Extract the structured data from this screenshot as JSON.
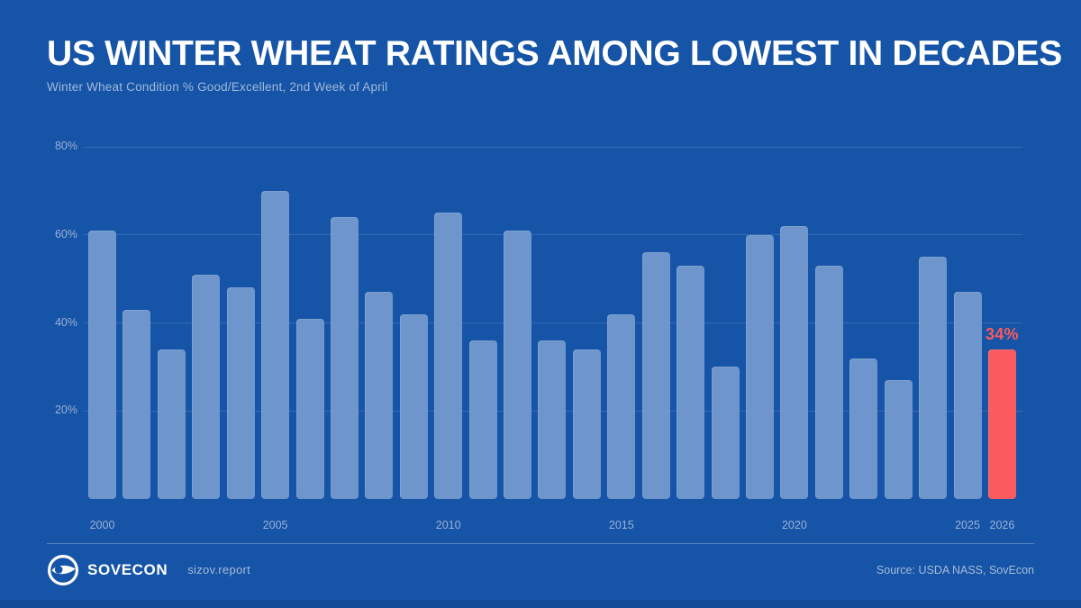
{
  "chart_data": {
    "type": "bar",
    "title": "US WINTER WHEAT RATINGS AMONG LOWEST IN DECADES",
    "subtitle": "Winter Wheat Condition % Good/Excellent, 2nd Week of April",
    "categories": [
      "2000",
      "2001",
      "2002",
      "2003",
      "2004",
      "2005",
      "2006",
      "2007",
      "2008",
      "2009",
      "2010",
      "2011",
      "2012",
      "2013",
      "2014",
      "2015",
      "2016",
      "2017",
      "2018",
      "2019",
      "2020",
      "2021",
      "2022",
      "2023",
      "2024",
      "2025",
      "2026"
    ],
    "values": [
      61,
      43,
      34,
      51,
      48,
      70,
      41,
      64,
      47,
      42,
      65,
      36,
      61,
      36,
      34,
      42,
      56,
      53,
      30,
      60,
      62,
      53,
      32,
      27,
      55,
      47,
      34
    ],
    "unit": "%",
    "ylim": [
      0,
      80
    ],
    "y_ticks": [
      20,
      40,
      60,
      80
    ],
    "y_tick_labels": [
      "20%",
      "40%",
      "60%",
      "80%"
    ],
    "x_tick_labels": [
      "2000",
      "2005",
      "2010",
      "2015",
      "2020",
      "2025",
      "2026"
    ],
    "grid": "horizontal-only",
    "legend": "none",
    "bar_color": "#6E95CC",
    "highlight_index": 26,
    "highlight_label": "34%",
    "highlight_color": "#FB5A5E"
  },
  "footer": {
    "brand": "SOVECON",
    "website": "sizov.report",
    "source": "Source: USDA NASS, SovEcon",
    "logo_icon": "sovecon-eye-logo"
  },
  "colors": {
    "background": "#1554A6",
    "bar": "#6E95CC",
    "highlight": "#FB5A5E",
    "title_text": "#FFFFFF",
    "muted_text": "#9BB1D7",
    "bottom_strip": "#114B97"
  }
}
